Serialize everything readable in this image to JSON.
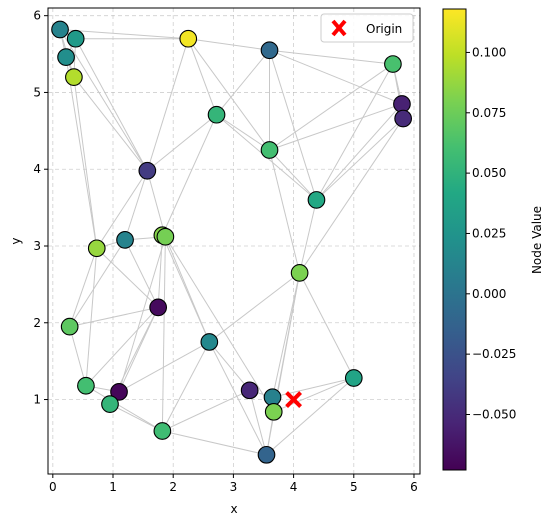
{
  "chart_data": {
    "type": "scatter",
    "xlabel": "x",
    "ylabel": "y",
    "xlim": [
      -0.08,
      6.1
    ],
    "ylim": [
      0.03,
      6.1
    ],
    "xticks": [
      0,
      1,
      2,
      3,
      4,
      5,
      6
    ],
    "yticks": [
      1,
      2,
      3,
      4,
      5,
      6
    ],
    "grid": true,
    "legend": {
      "placement": "top-right",
      "entries": [
        {
          "label": "Origin",
          "marker": "x",
          "color": "#ff0000"
        }
      ]
    },
    "colorbar": {
      "label": "Node Value",
      "min": -0.073,
      "max": 0.118,
      "ticks": [
        -0.05,
        -0.025,
        0.0,
        0.025,
        0.05,
        0.075,
        0.1
      ],
      "tick_labels": [
        "−0.050",
        "−0.025",
        "0.000",
        "0.025",
        "0.050",
        "0.075",
        "0.100"
      ],
      "colormap": "viridis"
    },
    "origin": {
      "x": 4.0,
      "y": 1.0
    },
    "nodes": [
      {
        "x": 0.12,
        "y": 5.82,
        "value": 0.012
      },
      {
        "x": 0.38,
        "y": 5.7,
        "value": 0.03
      },
      {
        "x": 0.22,
        "y": 5.46,
        "value": 0.02
      },
      {
        "x": 0.35,
        "y": 5.2,
        "value": 0.096
      },
      {
        "x": 2.25,
        "y": 5.7,
        "value": 0.115
      },
      {
        "x": 3.6,
        "y": 5.55,
        "value": -0.008
      },
      {
        "x": 5.65,
        "y": 5.37,
        "value": 0.062
      },
      {
        "x": 5.8,
        "y": 4.85,
        "value": -0.055
      },
      {
        "x": 5.82,
        "y": 4.66,
        "value": -0.05
      },
      {
        "x": 2.72,
        "y": 4.71,
        "value": 0.052
      },
      {
        "x": 3.6,
        "y": 4.25,
        "value": 0.06
      },
      {
        "x": 1.57,
        "y": 3.98,
        "value": -0.04
      },
      {
        "x": 4.38,
        "y": 3.6,
        "value": 0.042
      },
      {
        "x": 0.73,
        "y": 2.97,
        "value": 0.088
      },
      {
        "x": 1.2,
        "y": 3.08,
        "value": 0.012
      },
      {
        "x": 1.82,
        "y": 3.14,
        "value": 0.083
      },
      {
        "x": 1.87,
        "y": 3.12,
        "value": 0.078
      },
      {
        "x": 4.1,
        "y": 2.65,
        "value": 0.08
      },
      {
        "x": 1.75,
        "y": 2.2,
        "value": -0.068
      },
      {
        "x": 0.28,
        "y": 1.95,
        "value": 0.07
      },
      {
        "x": 2.6,
        "y": 1.75,
        "value": 0.016
      },
      {
        "x": 0.55,
        "y": 1.18,
        "value": 0.06
      },
      {
        "x": 1.1,
        "y": 1.1,
        "value": -0.07
      },
      {
        "x": 0.95,
        "y": 0.94,
        "value": 0.052
      },
      {
        "x": 3.27,
        "y": 1.12,
        "value": -0.052
      },
      {
        "x": 3.65,
        "y": 1.03,
        "value": 0.01
      },
      {
        "x": 3.67,
        "y": 0.84,
        "value": 0.08
      },
      {
        "x": 5.0,
        "y": 1.28,
        "value": 0.038
      },
      {
        "x": 1.82,
        "y": 0.59,
        "value": 0.058
      },
      {
        "x": 3.55,
        "y": 0.28,
        "value": -0.012
      }
    ],
    "edges": [
      [
        0,
        1
      ],
      [
        0,
        2
      ],
      [
        0,
        3
      ],
      [
        0,
        4
      ],
      [
        0,
        11
      ],
      [
        1,
        2
      ],
      [
        1,
        3
      ],
      [
        1,
        4
      ],
      [
        1,
        11
      ],
      [
        2,
        3
      ],
      [
        2,
        13
      ],
      [
        3,
        11
      ],
      [
        3,
        13
      ],
      [
        4,
        5
      ],
      [
        4,
        9
      ],
      [
        4,
        11
      ],
      [
        4,
        10
      ],
      [
        5,
        6
      ],
      [
        5,
        9
      ],
      [
        5,
        10
      ],
      [
        5,
        7
      ],
      [
        5,
        12
      ],
      [
        6,
        7
      ],
      [
        6,
        8
      ],
      [
        6,
        12
      ],
      [
        6,
        10
      ],
      [
        7,
        8
      ],
      [
        7,
        12
      ],
      [
        7,
        10
      ],
      [
        8,
        12
      ],
      [
        8,
        17
      ],
      [
        9,
        10
      ],
      [
        9,
        11
      ],
      [
        9,
        15
      ],
      [
        9,
        12
      ],
      [
        10,
        12
      ],
      [
        10,
        17
      ],
      [
        11,
        13
      ],
      [
        11,
        14
      ],
      [
        11,
        16
      ],
      [
        12,
        17
      ],
      [
        13,
        14
      ],
      [
        13,
        21
      ],
      [
        13,
        19
      ],
      [
        14,
        18
      ],
      [
        14,
        16
      ],
      [
        15,
        16
      ],
      [
        15,
        18
      ],
      [
        15,
        20
      ],
      [
        16,
        20
      ],
      [
        16,
        22
      ],
      [
        16,
        28
      ],
      [
        16,
        26
      ],
      [
        17,
        20
      ],
      [
        17,
        29
      ],
      [
        17,
        25
      ],
      [
        17,
        26
      ],
      [
        17,
        27
      ],
      [
        18,
        19
      ],
      [
        18,
        21
      ],
      [
        18,
        22
      ],
      [
        18,
        23
      ],
      [
        19,
        21
      ],
      [
        19,
        14
      ],
      [
        20,
        22
      ],
      [
        20,
        24
      ],
      [
        20,
        28
      ],
      [
        20,
        29
      ],
      [
        21,
        22
      ],
      [
        21,
        28
      ],
      [
        22,
        23
      ],
      [
        23,
        28
      ],
      [
        24,
        25
      ],
      [
        24,
        29
      ],
      [
        25,
        27
      ],
      [
        26,
        27
      ],
      [
        26,
        29
      ],
      [
        27,
        29
      ],
      [
        28,
        29
      ],
      [
        24,
        28
      ],
      [
        13,
        18
      ]
    ]
  }
}
